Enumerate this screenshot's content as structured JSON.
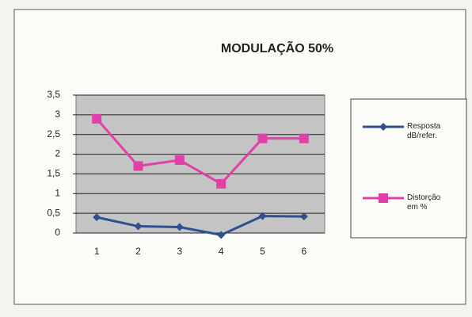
{
  "chart_data": {
    "type": "line",
    "title": "MODULAÇÃO 50%",
    "categories": [
      "1",
      "2",
      "3",
      "4",
      "5",
      "6"
    ],
    "series": [
      {
        "name": "Resposta dB/refer.",
        "color": "#2f4f8f",
        "marker": "diamond",
        "values": [
          0.4,
          0.17,
          0.15,
          -0.05,
          0.43,
          0.42
        ]
      },
      {
        "name": "Distorção em %",
        "color": "#e040a8",
        "marker": "square",
        "values": [
          2.9,
          1.7,
          1.85,
          1.25,
          2.4,
          2.4
        ]
      }
    ],
    "ylim": [
      0,
      3.5
    ],
    "yticks": [
      0,
      {
        "value": 0.5,
        "label": "0,5"
      },
      1,
      {
        "value": 1.5,
        "label": "1,5"
      },
      2,
      {
        "value": 2.5,
        "label": "2,5"
      },
      3,
      {
        "value": 3.5,
        "label": "3,5"
      }
    ],
    "grid": true,
    "legend": "right"
  }
}
